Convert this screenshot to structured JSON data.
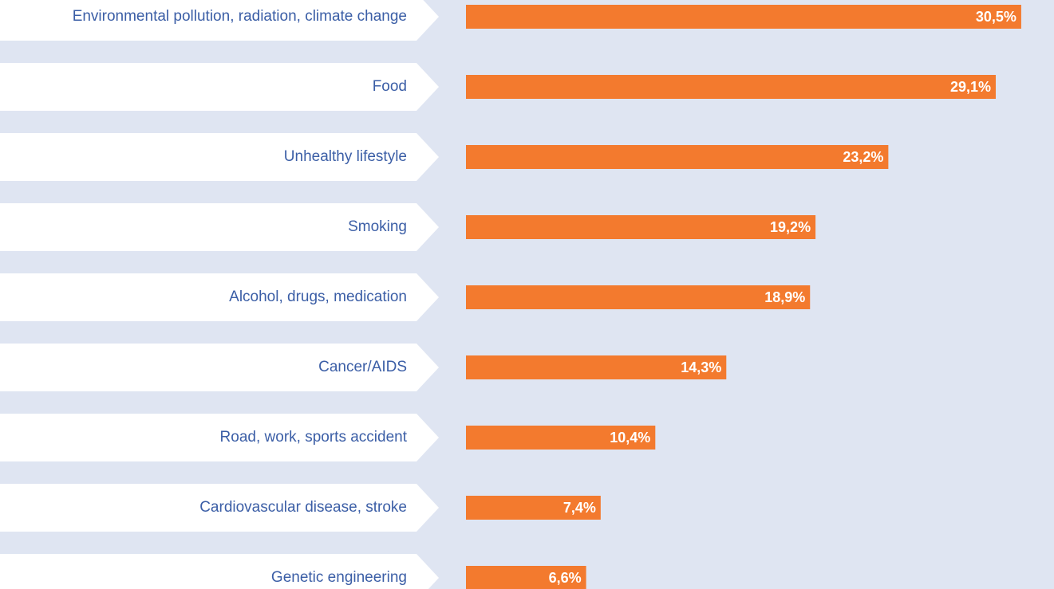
{
  "chart_data": {
    "type": "barh",
    "categories": [
      "Environmental pollution, radiation, climate change",
      "Food",
      "Unhealthy lifestyle",
      "Smoking",
      "Alcohol, drugs, medication",
      "Cancer/AIDS",
      "Road, work, sports accident",
      "Cardiovascular disease, stroke",
      "Genetic engineering"
    ],
    "values": [
      30.5,
      29.1,
      23.2,
      19.2,
      18.9,
      14.3,
      10.4,
      7.4,
      6.6
    ],
    "value_labels": [
      "30,5%",
      "29,1%",
      "23,2%",
      "19,2%",
      "18,9%",
      "14,3%",
      "10,4%",
      "7,4%",
      "6,6%"
    ],
    "color": "#f37a2e",
    "xlim": [
      0,
      32.3
    ]
  }
}
